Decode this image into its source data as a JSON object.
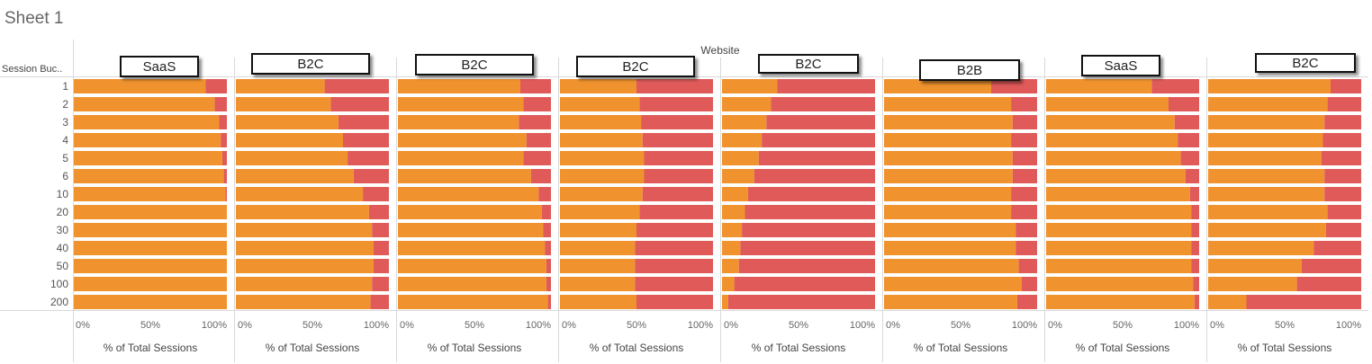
{
  "sheet_title": "Sheet 1",
  "colors": {
    "primary": "#F0932E",
    "secondary": "#E05A5A",
    "grid": "#D9D9D9",
    "text": "#666666"
  },
  "chart_data": {
    "type": "bar",
    "orientation": "horizontal",
    "stacked": "100%",
    "column_header": "Website",
    "row_header": "Session Buc..",
    "categories": [
      "1",
      "2",
      "3",
      "4",
      "5",
      "6",
      "10",
      "20",
      "30",
      "40",
      "50",
      "100",
      "200"
    ],
    "xlabel": "% of Total Sessions",
    "xticks": [
      "0%",
      "50%",
      "100%"
    ],
    "xlim": [
      0,
      100
    ],
    "grid": true,
    "panels": [
      {
        "label": "SaaS",
        "values": [
          86,
          92,
          95,
          96,
          97,
          98,
          99,
          100,
          100,
          100,
          100,
          100,
          100
        ]
      },
      {
        "label": "B2C",
        "values": [
          58,
          62,
          67,
          70,
          73,
          77,
          83,
          87,
          89,
          90,
          90,
          89,
          88
        ]
      },
      {
        "label": "B2C",
        "values": [
          80,
          82,
          79,
          84,
          82,
          87,
          92,
          94,
          95,
          96,
          97,
          97,
          98
        ]
      },
      {
        "label": "B2C",
        "values": [
          50,
          52,
          53,
          54,
          55,
          55,
          54,
          52,
          50,
          49,
          49,
          49,
          50
        ]
      },
      {
        "label": "B2C",
        "values": [
          36,
          32,
          29,
          26,
          24,
          21,
          17,
          15,
          13,
          12,
          11,
          8,
          4
        ]
      },
      {
        "label": "B2B",
        "values": [
          70,
          83,
          84,
          83,
          84,
          84,
          83,
          83,
          86,
          86,
          88,
          90,
          87
        ]
      },
      {
        "label": "SaaS",
        "values": [
          69,
          80,
          84,
          86,
          88,
          91,
          94,
          95,
          95,
          95,
          95,
          96,
          97
        ]
      },
      {
        "label": "B2C",
        "values": [
          80,
          78,
          76,
          75,
          74,
          76,
          76,
          78,
          77,
          69,
          61,
          58,
          25
        ]
      }
    ]
  }
}
